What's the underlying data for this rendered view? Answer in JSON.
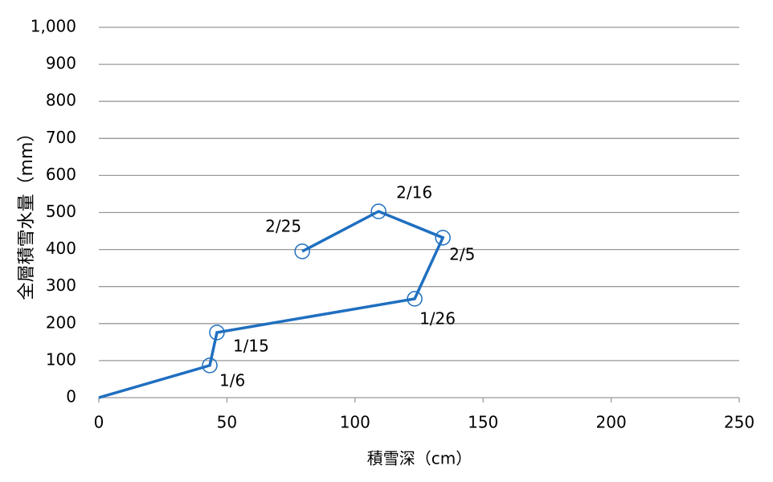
{
  "chart_data": {
    "type": "scatter",
    "x_label": "積雪深（cm）",
    "y_label": "全層積雪水量（mm）",
    "series": [
      {
        "color": "#1f6fc0",
        "x": [
          0,
          43.3,
          46.1,
          123.3,
          134.3,
          109.2,
          79.4
        ],
        "values": [
          0,
          87,
          176,
          267,
          432,
          503,
          395
        ],
        "point_labels": [
          null,
          "1/6",
          "1/15",
          "1/26",
          "2/5",
          "2/16",
          "2/25"
        ]
      }
    ],
    "xlim": [
      0,
      250
    ],
    "xticks": [
      0,
      50,
      100,
      150,
      200,
      250
    ],
    "ylim": [
      0,
      1000
    ],
    "yticks": [
      0,
      100,
      200,
      300,
      400,
      500,
      600,
      700,
      800,
      900,
      {
        "value": 1000,
        "label": "1,000"
      }
    ],
    "grid": true
  }
}
